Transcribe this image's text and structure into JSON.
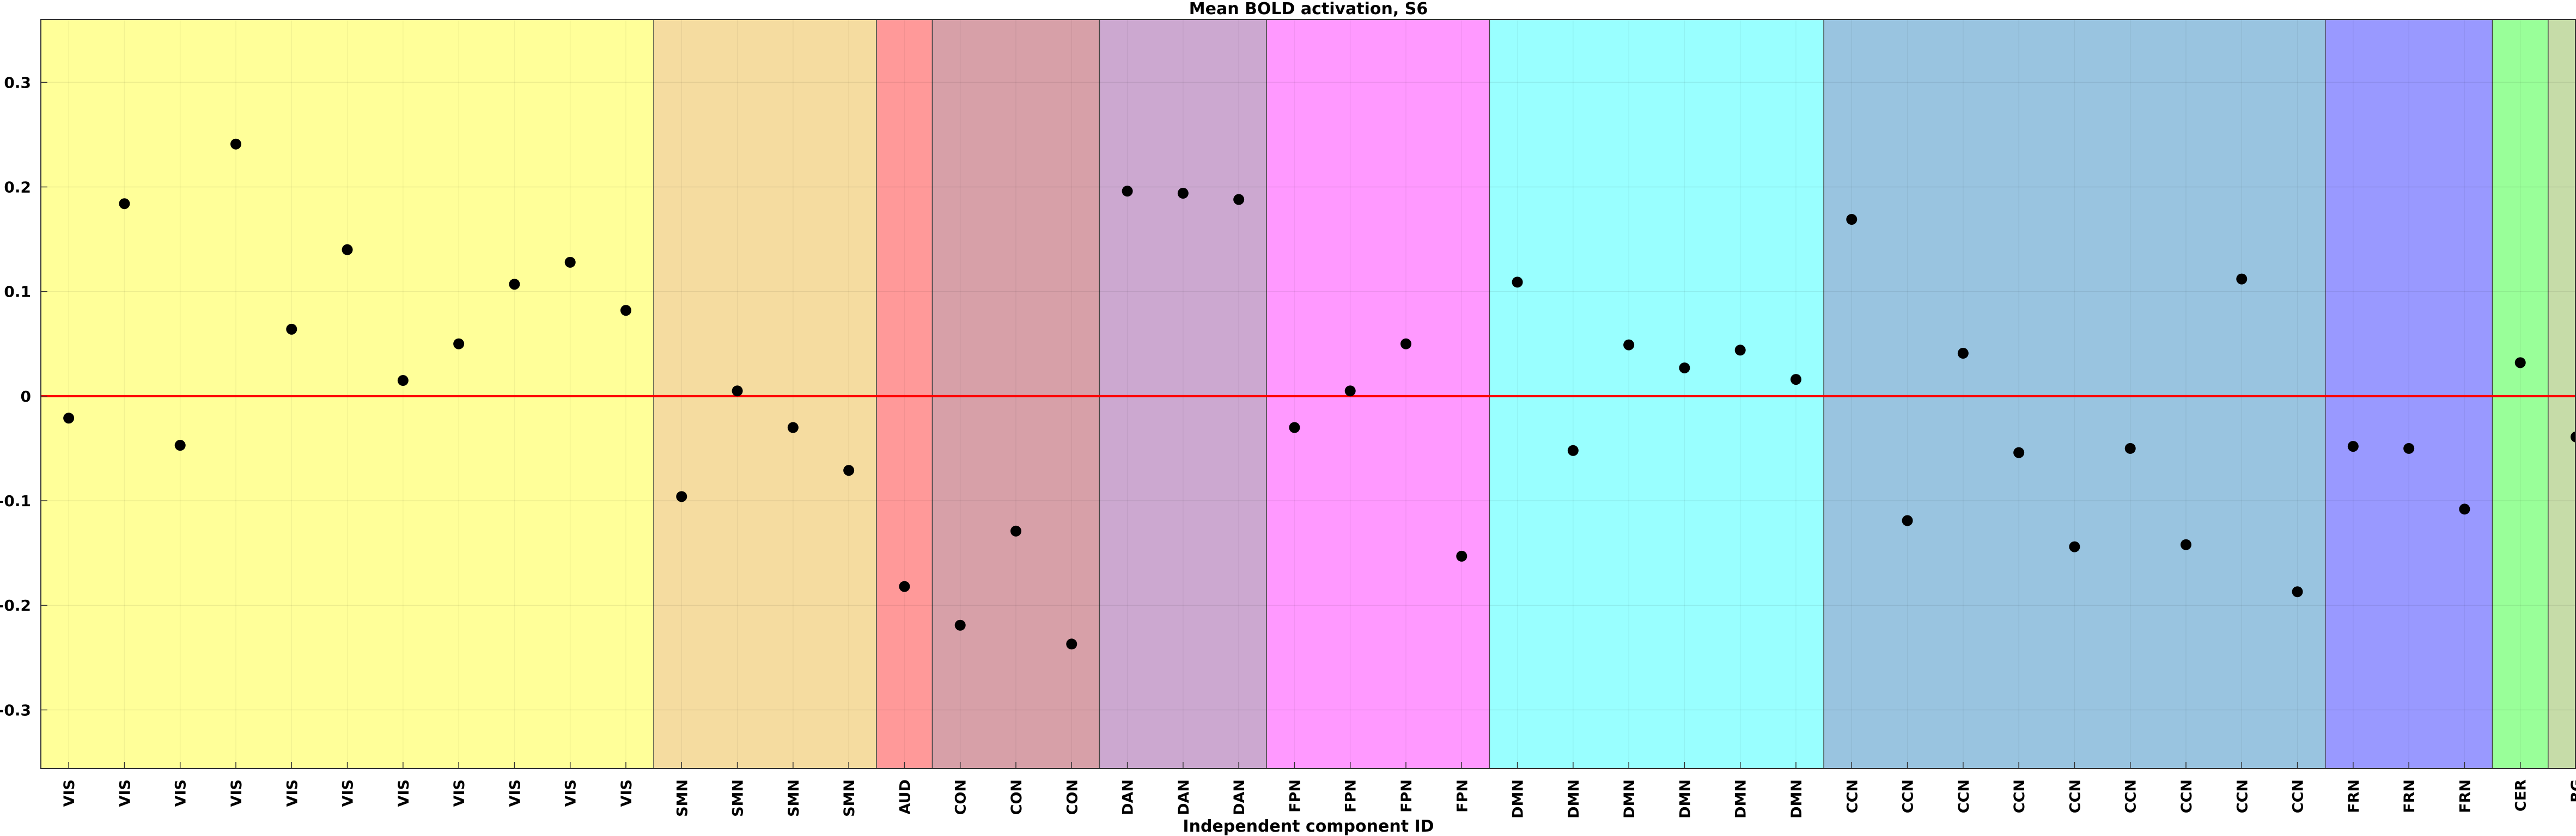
{
  "chart_data": {
    "type": "scatter",
    "title": "Mean BOLD activation, S6",
    "xlabel": "Independent component ID",
    "ylabel": "",
    "ylim": [
      -0.356,
      0.36
    ],
    "yticks": [
      0.3,
      0.2,
      0.1,
      0,
      -0.1,
      -0.2,
      -0.3
    ],
    "ytick_labels": [
      "0.3",
      "0.2",
      "0.1",
      "0",
      "-0.1",
      "-0.2",
      "-0.3"
    ],
    "grid": true,
    "zero_line_color": "#ff0000",
    "marker_color": "#000000",
    "categories": [
      "VIS",
      "VIS",
      "VIS",
      "VIS",
      "VIS",
      "VIS",
      "VIS",
      "VIS",
      "VIS",
      "VIS",
      "VIS",
      "SMN",
      "SMN",
      "SMN",
      "SMN",
      "AUD",
      "CON",
      "CON",
      "CON",
      "DAN",
      "DAN",
      "DAN",
      "FPN",
      "FPN",
      "FPN",
      "FPN",
      "DMN",
      "DMN",
      "DMN",
      "DMN",
      "DMN",
      "DMN",
      "CCN",
      "CCN",
      "CCN",
      "CCN",
      "CCN",
      "CCN",
      "CCN",
      "CCN",
      "CCN",
      "FRN",
      "FRN",
      "FRN",
      "CER",
      "BG"
    ],
    "values": [
      -0.021,
      0.184,
      -0.047,
      0.241,
      0.064,
      0.14,
      0.015,
      0.05,
      0.107,
      0.128,
      0.082,
      -0.096,
      0.005,
      -0.03,
      -0.071,
      -0.182,
      -0.219,
      -0.129,
      -0.237,
      0.196,
      0.194,
      0.188,
      -0.03,
      0.005,
      0.05,
      -0.153,
      0.109,
      -0.052,
      0.049,
      0.027,
      0.044,
      0.016,
      0.169,
      -0.119,
      0.041,
      -0.054,
      -0.144,
      -0.05,
      -0.142,
      0.112,
      -0.187,
      -0.048,
      -0.05,
      -0.108,
      0.032,
      -0.039
    ],
    "networks": [
      {
        "name": "VIS",
        "start": 0,
        "count": 11,
        "color": "#ffff99"
      },
      {
        "name": "SMN",
        "start": 11,
        "count": 4,
        "color": "#f5dca0"
      },
      {
        "name": "AUD",
        "start": 15,
        "count": 1,
        "color": "#ff9999"
      },
      {
        "name": "CON",
        "start": 16,
        "count": 3,
        "color": "#d7a0a8"
      },
      {
        "name": "DAN",
        "start": 19,
        "count": 3,
        "color": "#cca8d0"
      },
      {
        "name": "FPN",
        "start": 22,
        "count": 4,
        "color": "#ff99ff"
      },
      {
        "name": "DMN",
        "start": 26,
        "count": 6,
        "color": "#99ffff"
      },
      {
        "name": "CCN",
        "start": 32,
        "count": 9,
        "color": "#99c4e0"
      },
      {
        "name": "FRN",
        "start": 41,
        "count": 3,
        "color": "#9999ff"
      },
      {
        "name": "CER",
        "start": 44,
        "count": 1,
        "color": "#99ff99"
      },
      {
        "name": "BG",
        "start": 45,
        "count": 1,
        "color": "#c6dca8"
      }
    ]
  }
}
